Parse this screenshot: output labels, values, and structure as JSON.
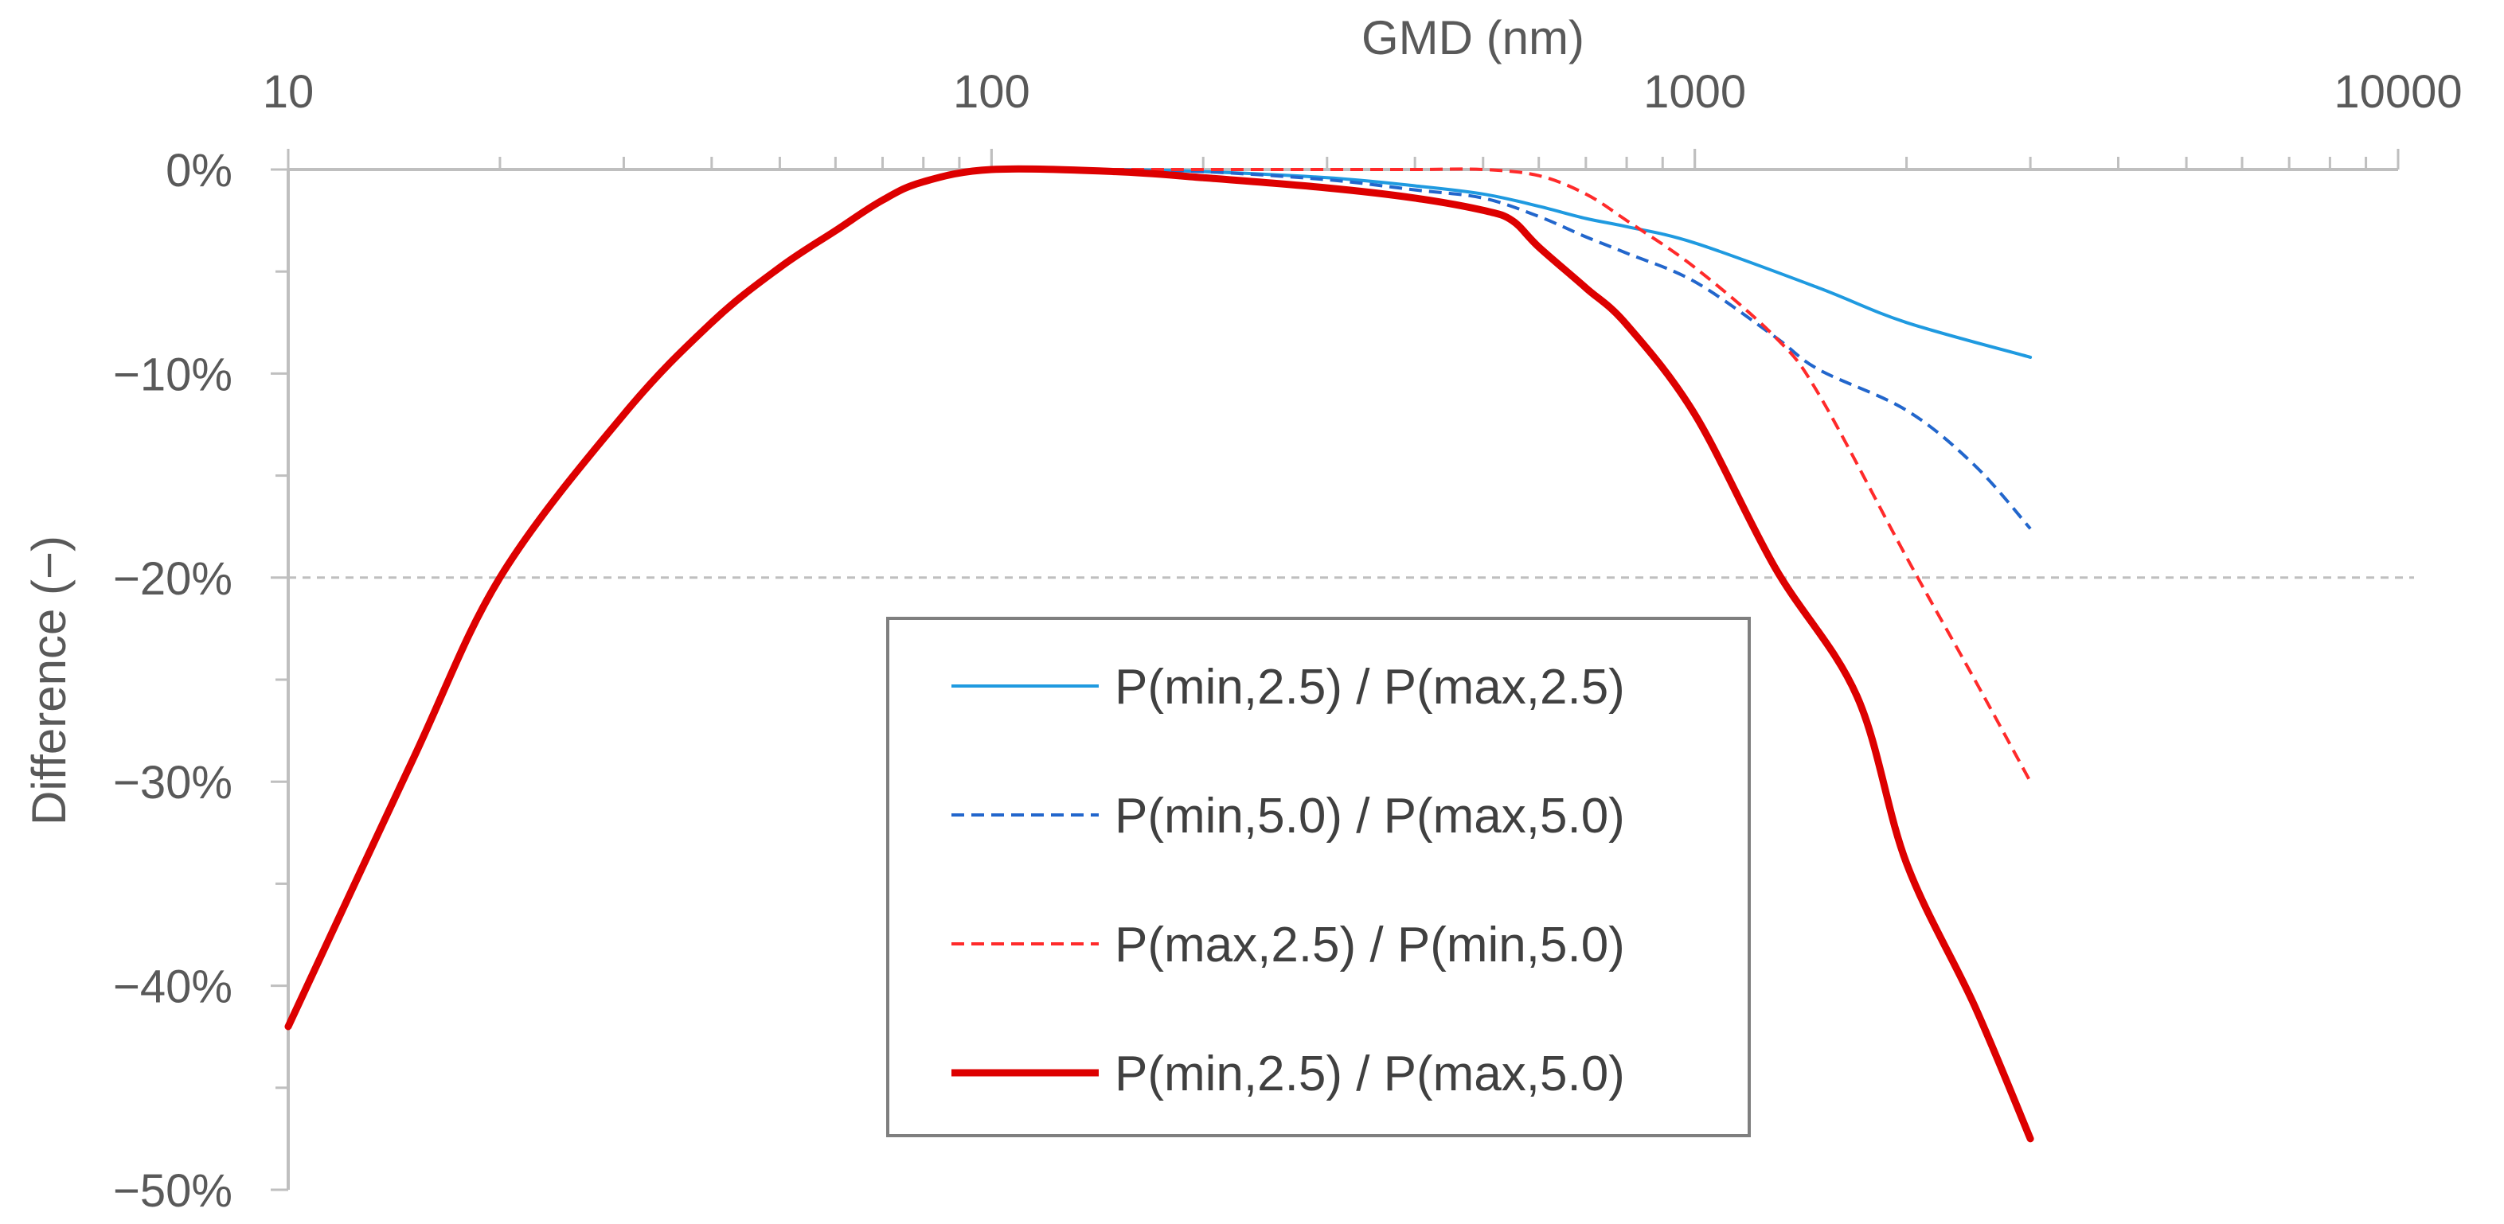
{
  "chart_data": {
    "type": "line",
    "title": "",
    "xlabel": "GMD (nm)",
    "ylabel": "Difference (−)",
    "x_scale": "log",
    "xlim": [
      10,
      10000
    ],
    "ylim": [
      -50,
      0
    ],
    "x_ticks": [
      {
        "value": 10,
        "label": "10"
      },
      {
        "value": 100,
        "label": "100"
      },
      {
        "value": 1000,
        "label": "1000"
      },
      {
        "value": 10000,
        "label": "10000"
      }
    ],
    "y_ticks": [
      {
        "value": 0,
        "label": "0%"
      },
      {
        "value": -10,
        "label": "−10%"
      },
      {
        "value": -20,
        "label": "−20%"
      },
      {
        "value": -30,
        "label": "−30%"
      },
      {
        "value": -40,
        "label": "−40%"
      },
      {
        "value": -50,
        "label": "−50%"
      }
    ],
    "reference_line": {
      "y": -20,
      "style": "dashed"
    },
    "legend_position": "center-bottom",
    "series": [
      {
        "name": "P(min,2.5) / P(max,2.5)",
        "color": "#1f9ae0",
        "dash": "solid",
        "width": "thin",
        "x": [
          10,
          15,
          20,
          30,
          40,
          50,
          60,
          70,
          80,
          100,
          150,
          200,
          300,
          400,
          500,
          600,
          700,
          800,
          1000,
          1500,
          2000,
          3000
        ],
        "y": [
          -42,
          -29,
          -20,
          -12,
          -7.5,
          -4.8,
          -3,
          -1.5,
          -0.6,
          0,
          0,
          -0.1,
          -0.4,
          -0.8,
          -1.2,
          -1.8,
          -2.4,
          -2.8,
          -3.6,
          -5.8,
          -7.5,
          -9.2
        ]
      },
      {
        "name": "P(min,5.0) / P(max,5.0)",
        "color": "#2266cc",
        "dash": "dashed",
        "width": "thin",
        "x": [
          10,
          15,
          20,
          30,
          40,
          50,
          60,
          70,
          80,
          100,
          150,
          200,
          300,
          400,
          500,
          600,
          700,
          800,
          1000,
          1300,
          1500,
          2000,
          2500,
          3000
        ],
        "y": [
          -42,
          -29,
          -20,
          -12,
          -7.5,
          -4.8,
          -3,
          -1.5,
          -0.6,
          0,
          0,
          -0.1,
          -0.5,
          -1,
          -1.4,
          -2.3,
          -3.3,
          -4.1,
          -5.5,
          -8.2,
          -9.8,
          -11.8,
          -14.5,
          -17.6
        ]
      },
      {
        "name": "P(max,2.5) / P(min,5.0)",
        "color": "#ff2a2a",
        "dash": "dashed",
        "width": "thin",
        "x": [
          10,
          15,
          20,
          30,
          40,
          50,
          60,
          70,
          80,
          100,
          150,
          200,
          300,
          400,
          500,
          600,
          700,
          800,
          1000,
          1300,
          1500,
          2000,
          2500,
          3000
        ],
        "y": [
          -42,
          -29,
          -20,
          -12,
          -7.5,
          -4.8,
          -3,
          -1.5,
          -0.6,
          0,
          0,
          0,
          0,
          0,
          0,
          -0.3,
          -1.2,
          -2.5,
          -4.8,
          -8.2,
          -11,
          -19,
          -25,
          -30
        ]
      },
      {
        "name": "P(min,2.5) / P(max,5.0)",
        "color": "#dd0000",
        "dash": "solid",
        "width": "thick",
        "x": [
          10,
          15,
          20,
          30,
          40,
          50,
          60,
          70,
          80,
          100,
          150,
          200,
          300,
          400,
          500,
          550,
          600,
          700,
          800,
          1000,
          1300,
          1700,
          2000,
          2500,
          3000
        ],
        "y": [
          -42,
          -29,
          -20,
          -12,
          -7.5,
          -4.8,
          -3,
          -1.5,
          -0.6,
          0,
          -0.1,
          -0.4,
          -0.9,
          -1.4,
          -2,
          -2.5,
          -3.8,
          -5.8,
          -7.6,
          -12,
          -19.5,
          -25.8,
          -34,
          -41,
          -47.5
        ]
      }
    ]
  }
}
